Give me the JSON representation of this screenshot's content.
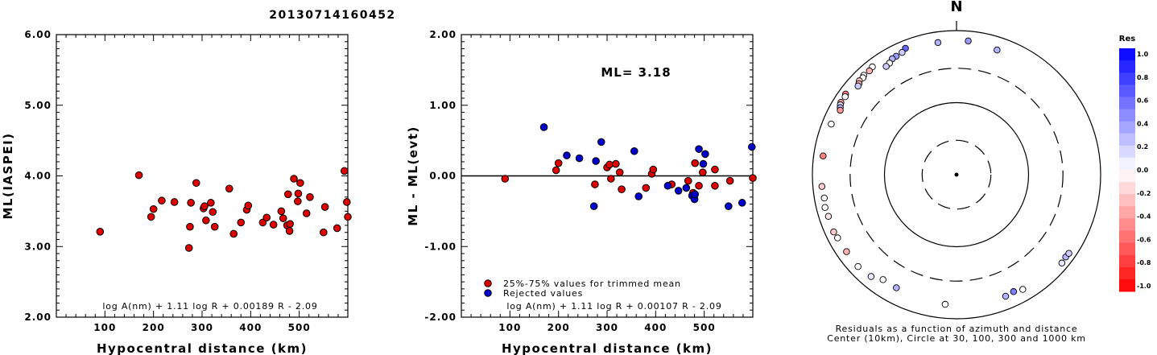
{
  "title": "20130714160452",
  "chart_data": [
    {
      "type": "scatter",
      "ylabel": "ML(IASPEI)",
      "xlabel": "Hypocentral distance (km)",
      "xlim": [
        0,
        600
      ],
      "ylim": [
        2,
        6
      ],
      "xticks": [
        "100",
        "200",
        "300",
        "400",
        "500"
      ],
      "yticks": [
        "2.00",
        "3.00",
        "4.00",
        "5.00",
        "6.00"
      ],
      "formula": "log A(nm) + 1.11 log R + 0.00189 R - 2.09",
      "color": "#dd0000",
      "points": [
        [
          90,
          3.21
        ],
        [
          170,
          4.01
        ],
        [
          195,
          3.42
        ],
        [
          200,
          3.53
        ],
        [
          217,
          3.65
        ],
        [
          243,
          3.63
        ],
        [
          273,
          2.98
        ],
        [
          275,
          3.28
        ],
        [
          277,
          3.62
        ],
        [
          288,
          3.9
        ],
        [
          303,
          3.54
        ],
        [
          305,
          3.57
        ],
        [
          308,
          3.37
        ],
        [
          318,
          3.62
        ],
        [
          322,
          3.49
        ],
        [
          326,
          3.28
        ],
        [
          356,
          3.82
        ],
        [
          365,
          3.18
        ],
        [
          380,
          3.34
        ],
        [
          392,
          3.52
        ],
        [
          395,
          3.58
        ],
        [
          425,
          3.34
        ],
        [
          433,
          3.41
        ],
        [
          447,
          3.31
        ],
        [
          463,
          3.5
        ],
        [
          467,
          3.4
        ],
        [
          475,
          3.3
        ],
        [
          477,
          3.74
        ],
        [
          480,
          3.22
        ],
        [
          481,
          3.32
        ],
        [
          489,
          3.96
        ],
        [
          497,
          3.64
        ],
        [
          498,
          3.75
        ],
        [
          502,
          3.9
        ],
        [
          515,
          3.47
        ],
        [
          522,
          3.7
        ],
        [
          550,
          3.2
        ],
        [
          553,
          3.56
        ],
        [
          578,
          3.26
        ],
        [
          593,
          4.07
        ],
        [
          598,
          3.63
        ],
        [
          600,
          3.42
        ]
      ]
    },
    {
      "type": "scatter",
      "ylabel": "ML - ML(evt)",
      "xlabel": "Hypocentral distance (km)",
      "xlim": [
        0,
        600
      ],
      "ylim": [
        -2,
        2
      ],
      "xticks": [
        "100",
        "200",
        "300",
        "400",
        "500"
      ],
      "yticks": [
        "-2.00",
        "-1.00",
        "0.00",
        "1.00",
        "2.00"
      ],
      "ml_label": "ML= 3.18",
      "formula": "log A(nm) + 1.11 log R + 0.00107 R - 2.09",
      "legend": [
        {
          "label": "25%-75% values for trimmed mean",
          "color": "#dd0000"
        },
        {
          "label": "Rejected values",
          "color": "#0000cc"
        }
      ],
      "series": [
        {
          "name": "25%-75% values for trimmed mean",
          "color": "#dd0000",
          "points": [
            [
              90,
              -0.04
            ],
            [
              195,
              0.08
            ],
            [
              200,
              0.18
            ],
            [
              275,
              -0.12
            ],
            [
              300,
              0.12
            ],
            [
              305,
              0.16
            ],
            [
              308,
              -0.04
            ],
            [
              318,
              0.17
            ],
            [
              326,
              0.05
            ],
            [
              330,
              -0.19
            ],
            [
              380,
              -0.17
            ],
            [
              392,
              0.03
            ],
            [
              395,
              0.09
            ],
            [
              433,
              -0.12
            ],
            [
              467,
              -0.07
            ],
            [
              477,
              -0.24
            ],
            [
              481,
              0.18
            ],
            [
              489,
              -0.14
            ],
            [
              497,
              0.05
            ],
            [
              522,
              -0.14
            ],
            [
              522,
              0.09
            ],
            [
              553,
              -0.07
            ],
            [
              600,
              -0.03
            ]
          ]
        },
        {
          "name": "Rejected values",
          "color": "#0000cc",
          "points": [
            [
              170,
              0.69
            ],
            [
              217,
              0.29
            ],
            [
              243,
              0.25
            ],
            [
              273,
              -0.43
            ],
            [
              277,
              0.21
            ],
            [
              288,
              0.48
            ],
            [
              356,
              0.35
            ],
            [
              365,
              -0.29
            ],
            [
              425,
              -0.14
            ],
            [
              447,
              -0.21
            ],
            [
              463,
              -0.17
            ],
            [
              475,
              -0.28
            ],
            [
              480,
              -0.33
            ],
            [
              481,
              -0.26
            ],
            [
              489,
              0.38
            ],
            [
              498,
              0.17
            ],
            [
              502,
              0.31
            ],
            [
              550,
              -0.43
            ],
            [
              578,
              -0.38
            ],
            [
              598,
              0.41
            ]
          ]
        }
      ]
    },
    {
      "type": "polar",
      "north_label": "N",
      "caption_line1": "Residuals as a function of azimuth and distance",
      "caption_line2": "Center (10km), Circle at 30, 100, 300 and 1000 km",
      "colorbar_title": "Res",
      "colorbar_labels": [
        "1.0",
        "0.8",
        "0.6",
        "0.4",
        "0.2",
        "0.0",
        "-0.2",
        "-0.4",
        "-0.6",
        "-0.8",
        "-1.0"
      ],
      "stations": [
        [
          -8,
          710,
          0.3
        ],
        [
          5,
          730,
          0.4
        ],
        [
          18,
          660,
          0.3
        ],
        [
          -22,
          780,
          0.6
        ],
        [
          -24,
          720,
          0.2
        ],
        [
          -27,
          700,
          0.4
        ],
        [
          -29,
          690,
          0.3
        ],
        [
          -31,
          640,
          0.0
        ],
        [
          -33,
          620,
          0.2
        ],
        [
          -38,
          790,
          0.0
        ],
        [
          -40,
          760,
          -0.3
        ],
        [
          -43,
          770,
          0.0
        ],
        [
          -44,
          740,
          0.0
        ],
        [
          -46,
          750,
          -0.2
        ],
        [
          -47,
          710,
          -0.3
        ],
        [
          -48,
          690,
          0.2
        ],
        [
          -54,
          800,
          -0.5
        ],
        [
          -55,
          770,
          0.0
        ],
        [
          -58,
          780,
          -0.4
        ],
        [
          -59,
          760,
          0.1
        ],
        [
          -60,
          730,
          0.3
        ],
        [
          -61,
          700,
          -0.4
        ],
        [
          -68,
          750,
          0.0
        ],
        [
          -82,
          740,
          -0.5
        ],
        [
          -95,
          750,
          -0.2
        ],
        [
          -100,
          730,
          0.0
        ],
        [
          -104,
          760,
          0.0
        ],
        [
          -108,
          740,
          -0.1
        ],
        [
          -115,
          760,
          -0.2
        ],
        [
          -118,
          740,
          0.0
        ],
        [
          -125,
          730,
          -0.3
        ],
        [
          -133,
          740,
          0.0
        ],
        [
          -140,
          700,
          0.1
        ],
        [
          -145,
          600,
          0.0
        ],
        [
          -152,
          600,
          0.3
        ],
        [
          -175,
          640,
          0.0
        ],
        [
          158,
          660,
          0.3
        ],
        [
          154,
          640,
          0.5
        ],
        [
          150,
          690,
          0.0
        ],
        [
          130,
          810,
          0.1
        ],
        [
          127,
          790,
          0.3
        ],
        [
          125,
          800,
          0.2
        ]
      ]
    }
  ]
}
